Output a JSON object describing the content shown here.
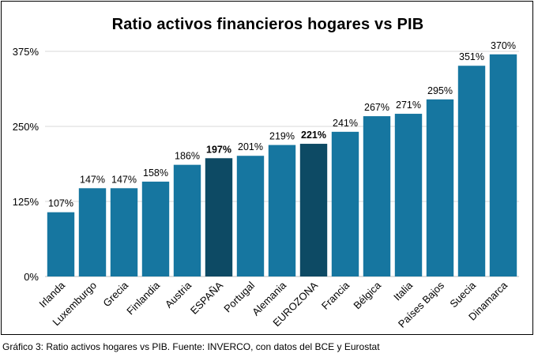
{
  "chart_data": {
    "type": "bar",
    "title": "Ratio activos financieros hogares vs PIB",
    "categories": [
      "Irlanda",
      "Luxemburgo",
      "Grecia",
      "Finlandia",
      "Austria",
      "ESPAÑA",
      "Portugal",
      "Alemania",
      "EUROZONA",
      "Francia",
      "Bélgica",
      "Italia",
      "Países Bajos",
      "Suecia",
      "Dinamarca"
    ],
    "values": [
      107,
      147,
      147,
      158,
      186,
      197,
      201,
      219,
      221,
      241,
      267,
      271,
      295,
      351,
      370
    ],
    "value_labels": [
      "107%",
      "147%",
      "147%",
      "158%",
      "186%",
      "197%",
      "201%",
      "219%",
      "221%",
      "241%",
      "267%",
      "271%",
      "295%",
      "351%",
      "370%"
    ],
    "highlighted": [
      "ESPAÑA",
      "EUROZONA"
    ],
    "y_ticks": [
      0,
      125,
      250,
      375
    ],
    "y_tick_labels": [
      "0%",
      "125%",
      "250%",
      "375%"
    ],
    "ylim": [
      0,
      375
    ],
    "grid": "horizontal",
    "legend": "none",
    "colors": {
      "bar": "#1676a0",
      "highlight": "#0d4a64",
      "grid": "#d9d9d9"
    }
  },
  "caption": "Gráfico 3: Ratio activos hogares vs PIB. Fuente: INVERCO, con datos del BCE y Eurostat"
}
